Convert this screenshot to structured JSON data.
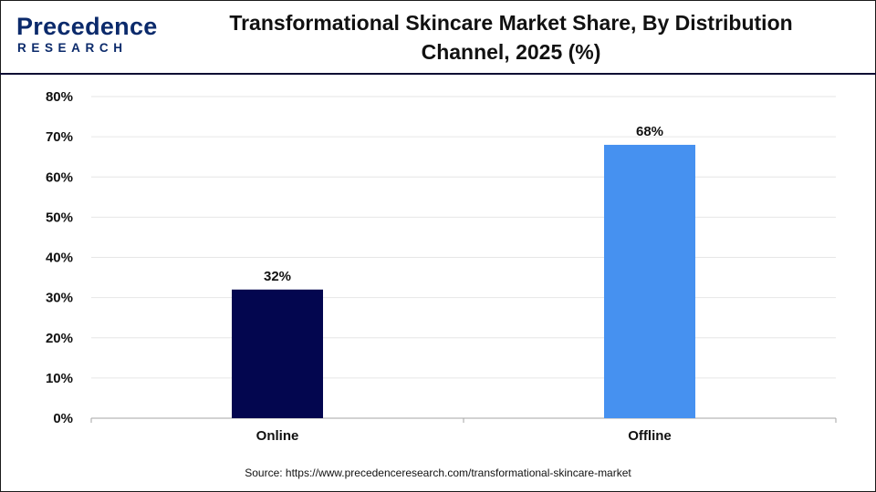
{
  "header": {
    "logo_top": "Precedence",
    "logo_bottom": "RESEARCH",
    "title_line1": "Transformational Skincare Market Share, By Distribution",
    "title_line2": "Channel, 2025 (%)"
  },
  "chart_data": {
    "type": "bar",
    "title": "Transformational Skincare Market Share, By Distribution Channel, 2025 (%)",
    "categories": [
      "Online",
      "Offline"
    ],
    "values": [
      32,
      68
    ],
    "value_labels": [
      "32%",
      "68%"
    ],
    "colors": [
      "#03064f",
      "#4691f0"
    ],
    "ylim": [
      0,
      80
    ],
    "yticks": [
      0,
      10,
      20,
      30,
      40,
      50,
      60,
      70,
      80
    ],
    "ytick_labels": [
      "0%",
      "10%",
      "20%",
      "30%",
      "40%",
      "50%",
      "60%",
      "70%",
      "80%"
    ],
    "grid": true,
    "xlabel": "",
    "ylabel": ""
  },
  "footer": {
    "source": "Source: https://www.precedenceresearch.com/transformational-skincare-market"
  }
}
